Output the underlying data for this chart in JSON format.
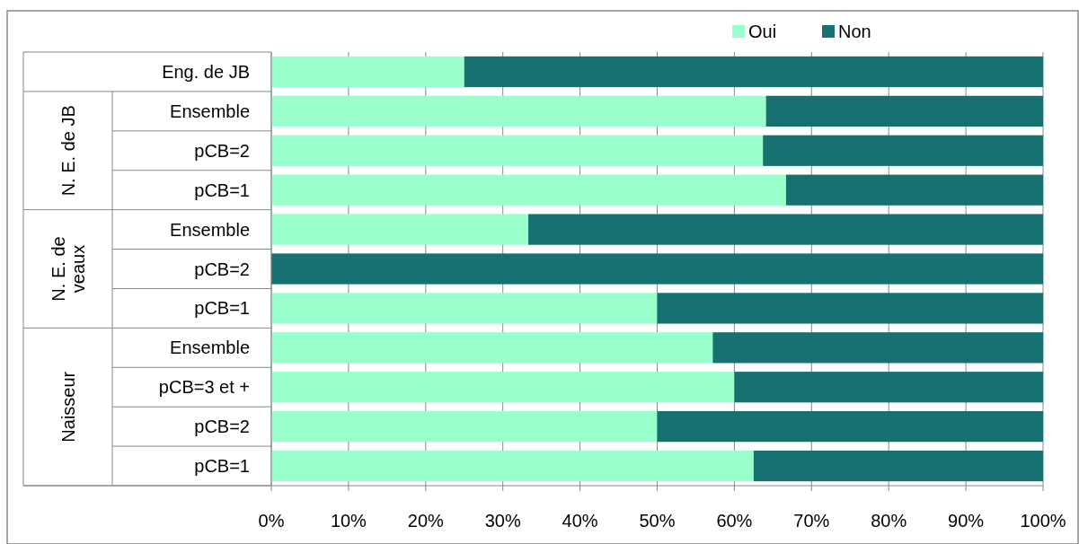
{
  "chart_data": {
    "type": "bar",
    "orientation": "horizontal",
    "stacked": true,
    "categories": [
      "Eng. de JB",
      "Ensemble",
      "pCB=2",
      "pCB=1",
      "Ensemble",
      "pCB=2",
      "pCB=1",
      "Ensemble",
      "pCB=3 et +",
      "pCB=2",
      "pCB=1"
    ],
    "series": [
      {
        "name": "Oui",
        "color": "#99ffcc",
        "values": [
          25,
          64.1,
          63.7,
          66.7,
          33.3,
          0,
          50,
          57.2,
          60,
          50,
          62.5
        ]
      },
      {
        "name": "Non",
        "color": "#177170",
        "values": [
          75,
          35.9,
          36.3,
          33.3,
          66.7,
          100,
          50,
          42.8,
          40,
          50,
          37.5
        ]
      }
    ],
    "xlim": [
      0,
      100
    ],
    "xticks": [
      {
        "value": 0,
        "label": "0%"
      },
      {
        "value": 10,
        "label": "10%"
      },
      {
        "value": 20,
        "label": "20%"
      },
      {
        "value": 30,
        "label": "30%"
      },
      {
        "value": 40,
        "label": "40%"
      },
      {
        "value": 50,
        "label": "50%"
      },
      {
        "value": 60,
        "label": "60%"
      },
      {
        "value": 70,
        "label": "70%"
      },
      {
        "value": 80,
        "label": "80%"
      },
      {
        "value": 90,
        "label": "90%"
      },
      {
        "value": 100,
        "label": "100%"
      }
    ],
    "grid": "x",
    "legend": "top right",
    "annotations": [
      "N. E. de JB",
      "N. E. de veaux",
      "Naisseur"
    ]
  }
}
